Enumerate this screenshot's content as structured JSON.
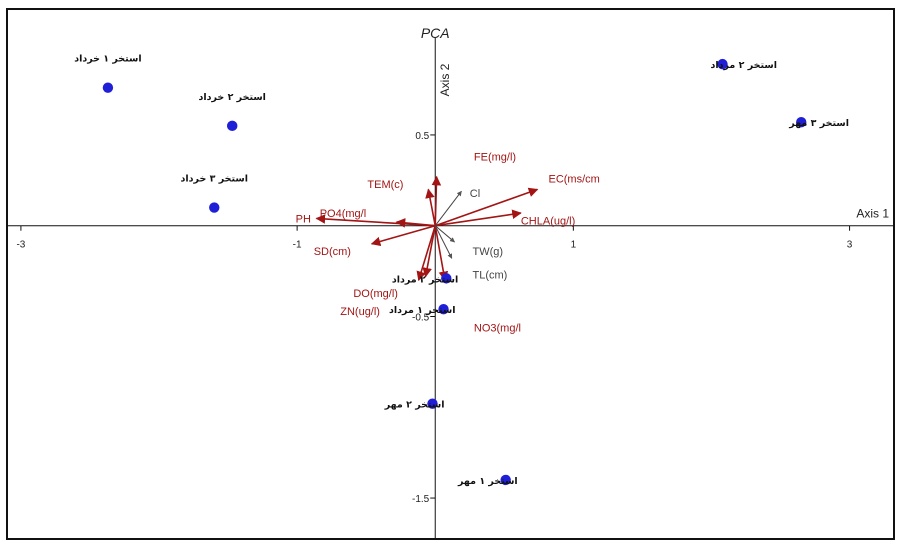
{
  "chart_data": {
    "type": "scatter",
    "title": "PCA",
    "xlabel": "Axis 1",
    "ylabel": "Axis 2",
    "xlim": [
      -3.05,
      3.3
    ],
    "ylim": [
      -1.72,
      1.1
    ],
    "x_ticks": [
      {
        "value": -3,
        "label": "-3"
      },
      {
        "value": -1,
        "label": "-1"
      },
      {
        "value": 1,
        "label": "1"
      },
      {
        "value": 3,
        "label": "3"
      }
    ],
    "y_ticks": [
      {
        "value": 0.5,
        "label": "0.5"
      },
      {
        "value": -0.5,
        "label": "-0.5"
      },
      {
        "value": -1.5,
        "label": "-1.5"
      }
    ],
    "grid": false,
    "point_color": "#1f1fd8",
    "vector_color": "#a31515",
    "vector_color_secondary": "#444444",
    "points": [
      {
        "label": "استخر ۱ خرداد",
        "x": -2.37,
        "y": 0.76,
        "label_side": "above"
      },
      {
        "label": "استخر ۲ خرداد",
        "x": -1.47,
        "y": 0.55,
        "label_side": "above"
      },
      {
        "label": "استخر ۳ خرداد",
        "x": -1.6,
        "y": 0.1,
        "label_side": "above"
      },
      {
        "label": "استخر ۲ مرداد",
        "x": 2.08,
        "y": 0.89,
        "label_side": "left"
      },
      {
        "label": "استخر ۳ مهر",
        "x": 2.65,
        "y": 0.57,
        "label_side": "left"
      },
      {
        "label": "استخر ۲ مرداد",
        "x": 0.08,
        "y": -0.29,
        "label_side": "right"
      },
      {
        "label": "استخر ۱ مرداد",
        "x": 0.06,
        "y": -0.46,
        "label_side": "right"
      },
      {
        "label": "استخر ۲ مهر",
        "x": -0.02,
        "y": -0.98,
        "label_side": "right"
      },
      {
        "label": "استخر ۱ مهر",
        "x": 0.51,
        "y": -1.4,
        "label_side": "right"
      }
    ],
    "vectors": [
      {
        "label": "FE(mg/l)",
        "x": 0.01,
        "y": 0.27,
        "tone": "primary",
        "lx": 0.28,
        "ly": 0.38
      },
      {
        "label": "EC(ms/cm",
        "x": 0.74,
        "y": 0.2,
        "tone": "primary",
        "lx": 0.82,
        "ly": 0.26
      },
      {
        "label": "CHLA(ug/l)",
        "x": 0.62,
        "y": 0.07,
        "tone": "primary",
        "lx": 0.62,
        "ly": 0.03
      },
      {
        "label": "TEM(c)",
        "x": -0.05,
        "y": 0.2,
        "tone": "primary",
        "lx": -0.23,
        "ly": 0.23
      },
      {
        "label": "PO4(mg/l",
        "x": -0.28,
        "y": 0.02,
        "tone": "primary",
        "lx": -0.5,
        "ly": 0.07
      },
      {
        "label": "PH",
        "x": -0.86,
        "y": 0.04,
        "tone": "primary",
        "lx": -0.9,
        "ly": 0.04
      },
      {
        "label": "SD(cm)",
        "x": -0.46,
        "y": -0.1,
        "tone": "primary",
        "lx": -0.61,
        "ly": -0.14
      },
      {
        "label": "DO(mg/l)",
        "x": -0.07,
        "y": -0.28,
        "tone": "primary",
        "lx": -0.27,
        "ly": -0.37
      },
      {
        "label": "ZN(ug/l)",
        "x": -0.12,
        "y": -0.3,
        "tone": "primary",
        "lx": -0.4,
        "ly": -0.47
      },
      {
        "label": "NO3(mg/l",
        "x": 0.07,
        "y": -0.3,
        "tone": "primary",
        "lx": 0.28,
        "ly": -0.56
      },
      {
        "label": "Cl",
        "x": 0.19,
        "y": 0.19,
        "tone": "secondary",
        "lx": 0.25,
        "ly": 0.18
      },
      {
        "label": "TW(g)",
        "x": 0.14,
        "y": -0.09,
        "tone": "secondary",
        "lx": 0.27,
        "ly": -0.14
      },
      {
        "label": "TL(cm)",
        "x": 0.12,
        "y": -0.18,
        "tone": "secondary",
        "lx": 0.27,
        "ly": -0.27
      }
    ]
  }
}
